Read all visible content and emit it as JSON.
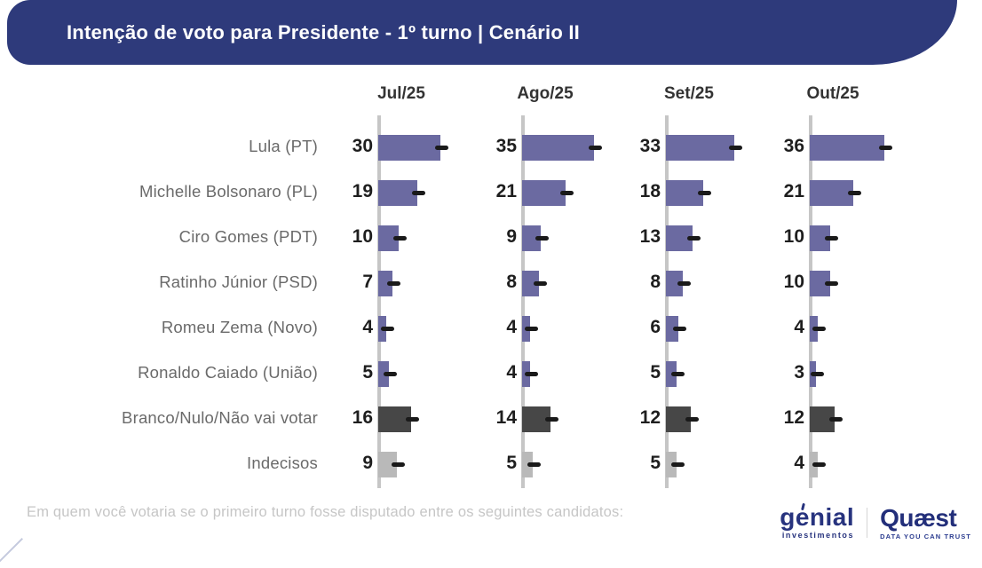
{
  "header": {
    "title": "Intenção de voto para Presidente - 1º turno | Cenário II"
  },
  "chart_data": {
    "type": "bar",
    "orientation": "horizontal",
    "columns": [
      "Jul/25",
      "Ago/25",
      "Set/25",
      "Out/25"
    ],
    "rows": [
      {
        "label": "Lula (PT)",
        "values": [
          30,
          35,
          33,
          36
        ],
        "color": "#6B6AA1"
      },
      {
        "label": "Michelle Bolsonaro (PL)",
        "values": [
          19,
          21,
          18,
          21
        ],
        "color": "#6B6AA1"
      },
      {
        "label": "Ciro Gomes (PDT)",
        "values": [
          10,
          9,
          13,
          10
        ],
        "color": "#6B6AA1"
      },
      {
        "label": "Ratinho Júnior (PSD)",
        "values": [
          7,
          8,
          8,
          10
        ],
        "color": "#6B6AA1"
      },
      {
        "label": "Romeu Zema (Novo)",
        "values": [
          4,
          4,
          6,
          4
        ],
        "color": "#6B6AA1"
      },
      {
        "label": "Ronaldo Caiado (União)",
        "values": [
          5,
          4,
          5,
          3
        ],
        "color": "#6B6AA1"
      },
      {
        "label": "Branco/Nulo/Não vai votar",
        "values": [
          16,
          14,
          12,
          12
        ],
        "color": "#474747"
      },
      {
        "label": "Indecisos",
        "values": [
          9,
          5,
          5,
          4
        ],
        "color": "#B9B9B9"
      }
    ],
    "xlim": [
      0,
      40
    ],
    "error_marker": true,
    "legend": "none",
    "grid": "off"
  },
  "footer": {
    "question": "Em quem você votaria se o primeiro turno fosse disputado entre os seguintes candidatos:"
  },
  "logos": {
    "genial": {
      "wordmark": "genial",
      "sub": "investimentos"
    },
    "quaest": {
      "wordmark": "Quæst",
      "tagline": "DATA YOU CAN TRUST"
    }
  },
  "colors": {
    "banner": "#2E3A7B",
    "bar_candidate": "#6B6AA1",
    "bar_blank_null": "#474747",
    "bar_undecided": "#B9B9B9",
    "axis_line": "#C6C6C6",
    "error_marker": "#1A1A1A"
  }
}
